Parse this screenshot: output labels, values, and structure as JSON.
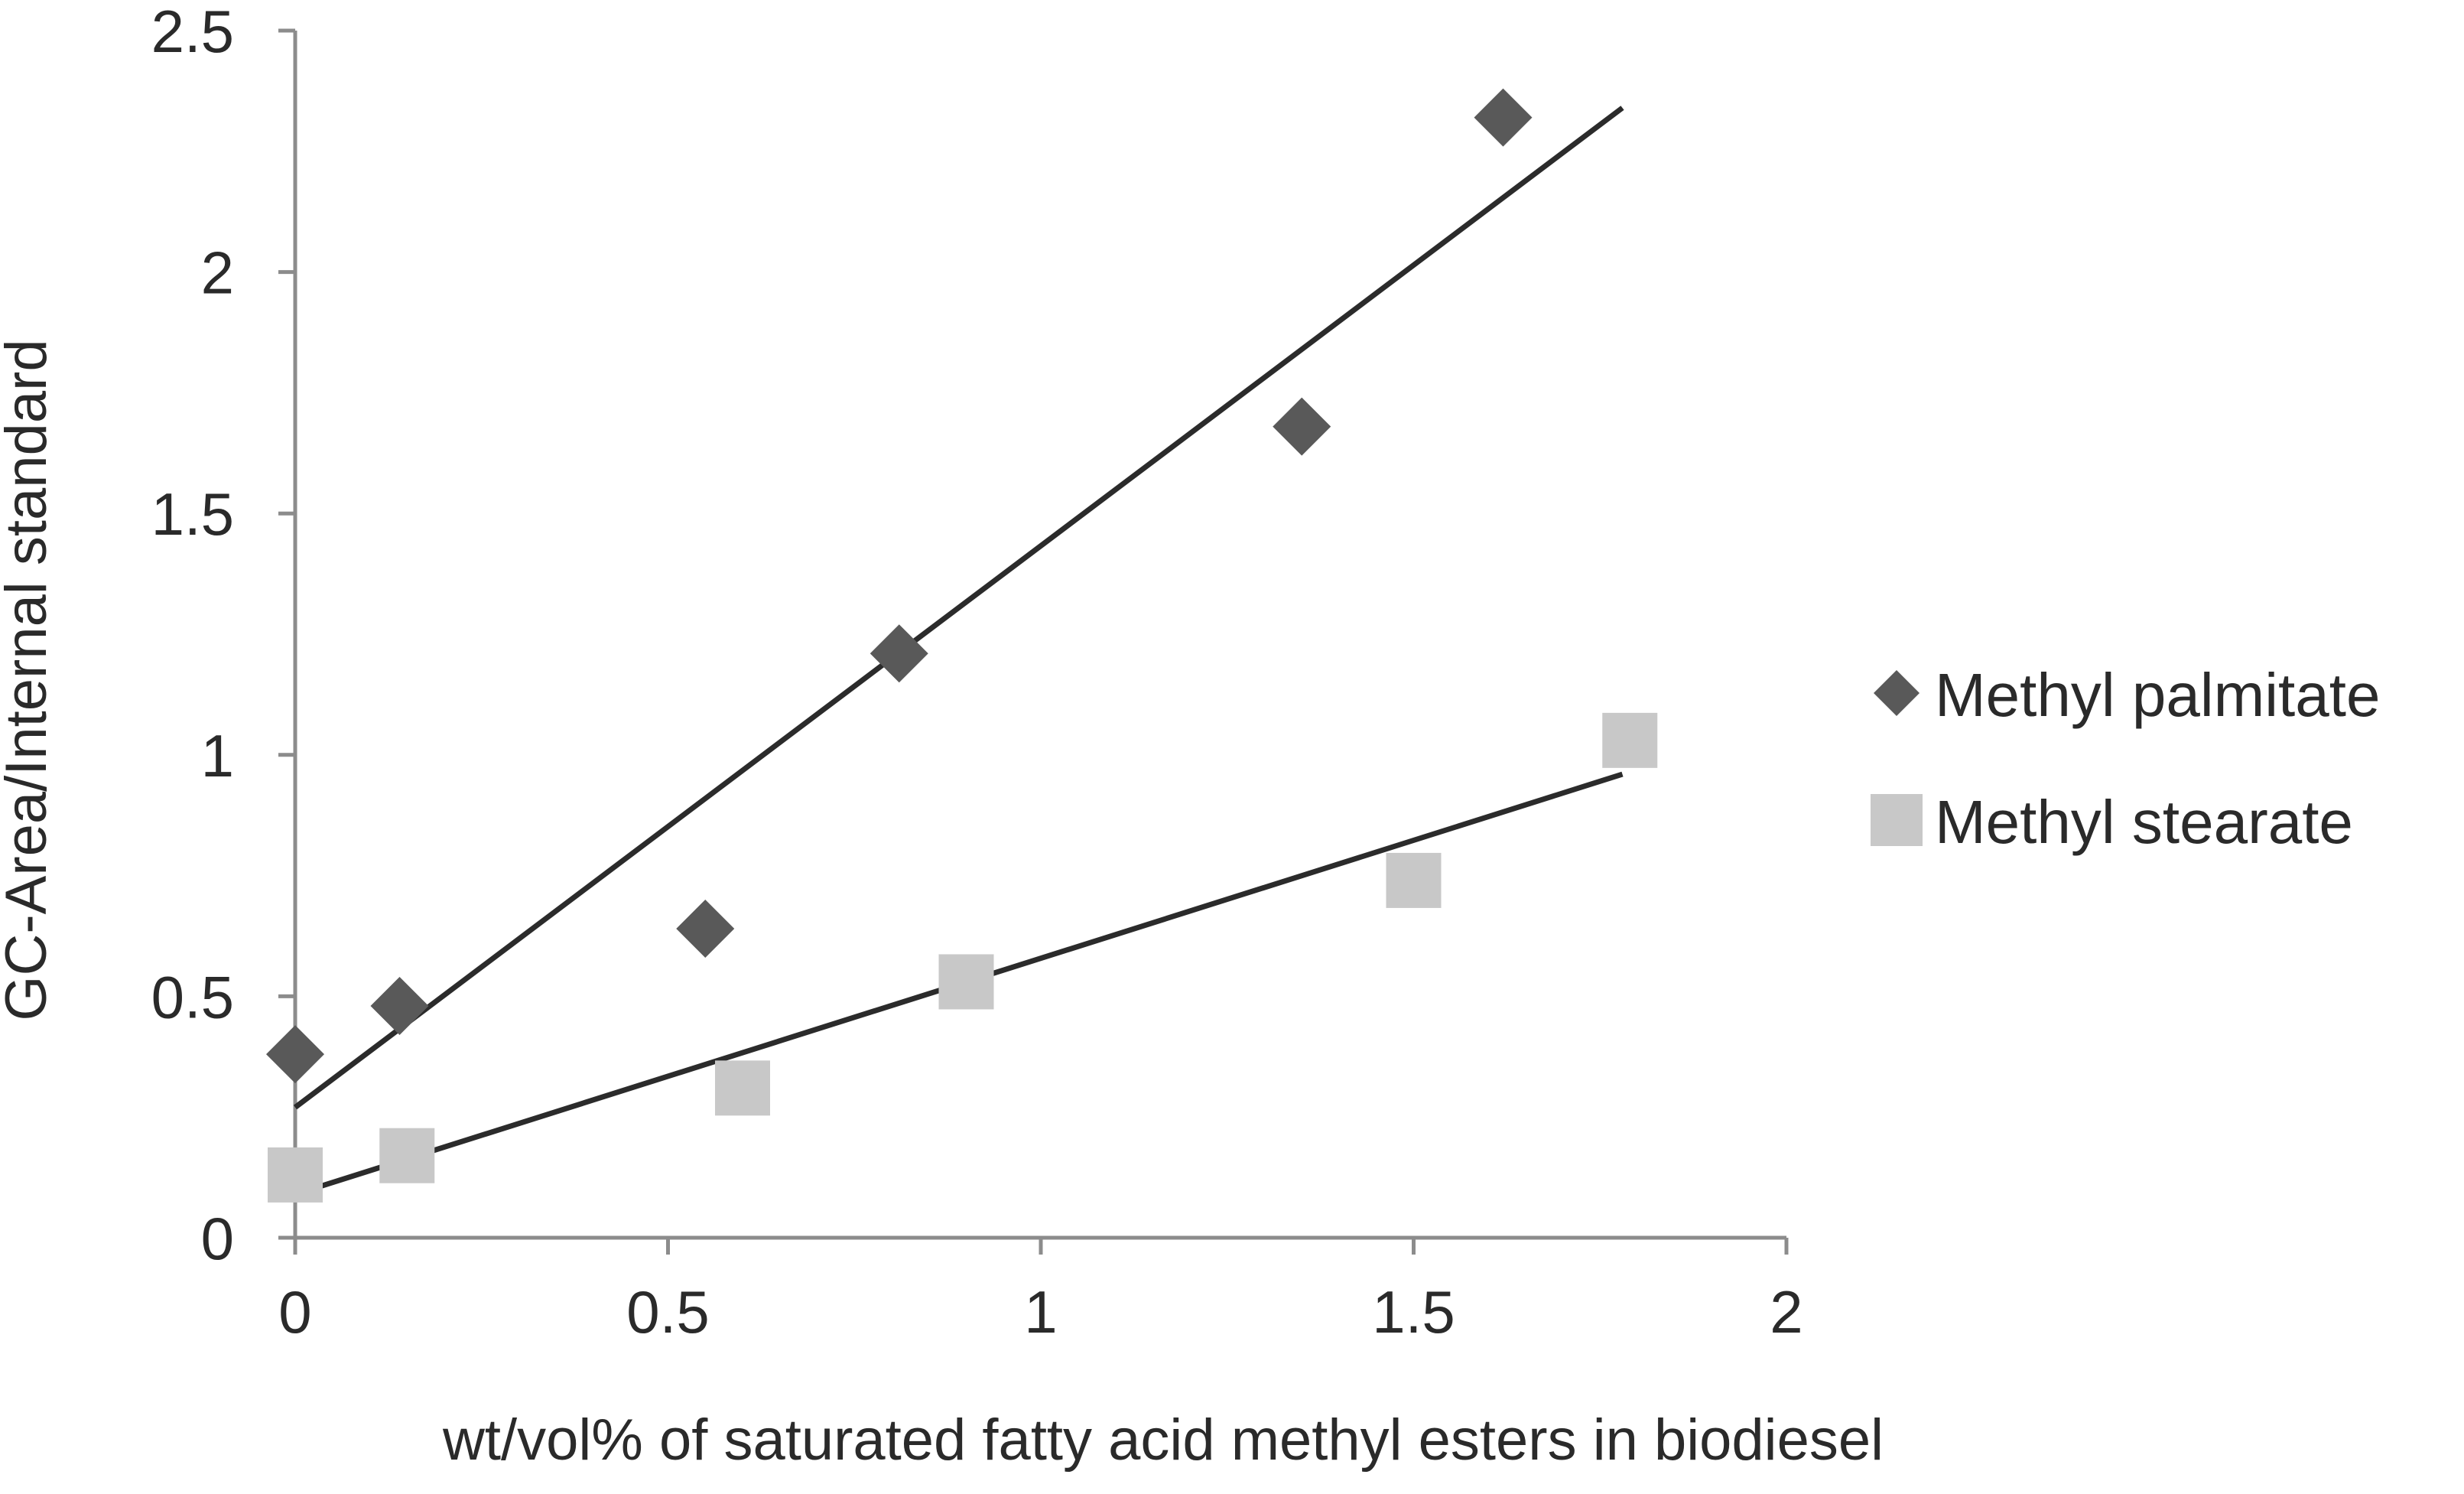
{
  "chart_data": {
    "type": "scatter",
    "title": "",
    "xlabel": "wt/vol% of saturated fatty acid methyl esters in biodiesel",
    "ylabel": "GC-Area/Internal standard",
    "xlim": [
      0,
      2
    ],
    "ylim": [
      0,
      2.5
    ],
    "x_ticks": [
      "0",
      "0.5",
      "1",
      "1.5",
      "2"
    ],
    "y_ticks": [
      "0",
      "0.5",
      "1",
      "1.5",
      "2",
      "2.5"
    ],
    "grid": false,
    "legend_position": "right",
    "series": [
      {
        "name": "Methyl palmitate",
        "marker": "diamond",
        "color": "#595959",
        "points": [
          {
            "x": 0.0,
            "y": 0.38
          },
          {
            "x": 0.14,
            "y": 0.48
          },
          {
            "x": 0.55,
            "y": 0.64
          },
          {
            "x": 0.81,
            "y": 1.21
          },
          {
            "x": 1.35,
            "y": 1.68
          },
          {
            "x": 1.62,
            "y": 2.32
          }
        ],
        "trendline": {
          "x": [
            0.0,
            1.78
          ],
          "y": [
            0.27,
            2.34
          ],
          "color": "#2b2b2b"
        }
      },
      {
        "name": "Methyl stearate",
        "marker": "square",
        "color": "#c8c8c8",
        "points": [
          {
            "x": 0.0,
            "y": 0.13
          },
          {
            "x": 0.15,
            "y": 0.17
          },
          {
            "x": 0.6,
            "y": 0.31
          },
          {
            "x": 0.9,
            "y": 0.53
          },
          {
            "x": 1.5,
            "y": 0.74
          },
          {
            "x": 1.79,
            "y": 1.03
          }
        ],
        "trendline": {
          "x": [
            0.0,
            1.78
          ],
          "y": [
            0.09,
            0.96
          ],
          "color": "#2b2b2b"
        }
      }
    ]
  }
}
